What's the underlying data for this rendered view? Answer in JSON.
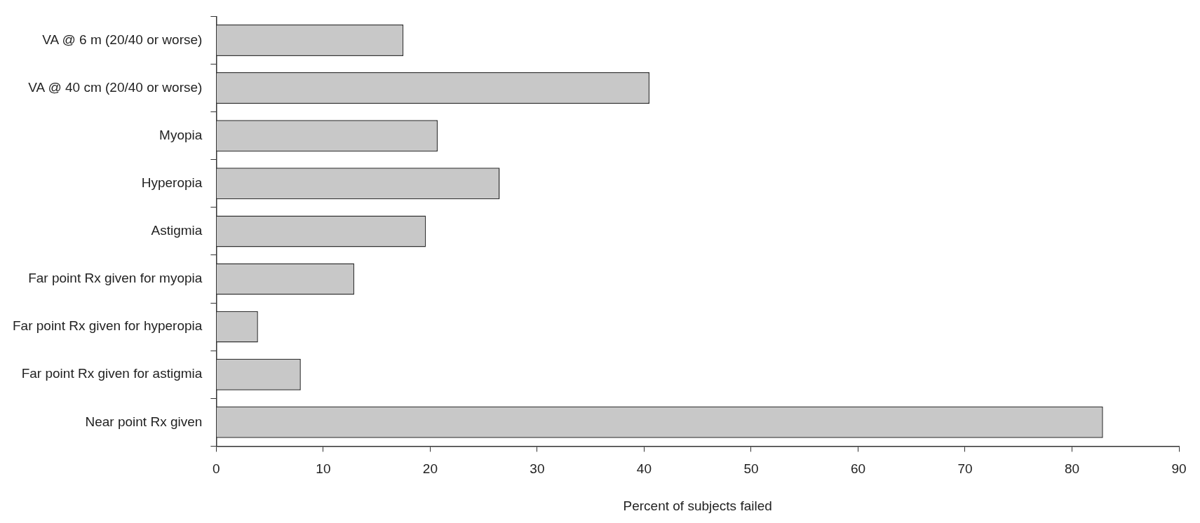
{
  "chart_data": {
    "type": "bar",
    "orientation": "horizontal",
    "xlabel": "Percent of subjects failed",
    "categories": [
      "VA @ 6 m (20/40 or worse)",
      "VA @ 40 cm (20/40 or worse)",
      "Myopia",
      "Hyperopia",
      "Astigmia",
      "Far point Rx given for myopia",
      "Far point Rx given for hyperopia",
      "Far point Rx given for astigmia",
      "Near point Rx given"
    ],
    "values": [
      17.5,
      40.5,
      20.7,
      26.5,
      19.6,
      12.9,
      3.9,
      7.9,
      82.9
    ],
    "color": "#c8c8c8",
    "xlim": [
      0,
      90
    ],
    "xticks": [
      0,
      10,
      20,
      30,
      40,
      50,
      60,
      70,
      80,
      90
    ],
    "grid": false,
    "legend": false
  }
}
